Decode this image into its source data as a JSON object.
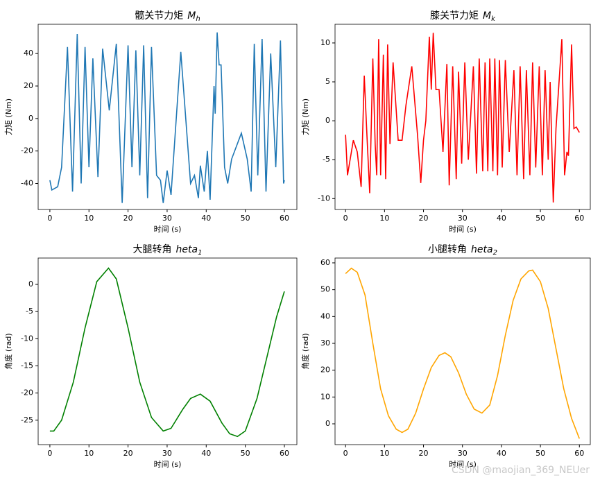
{
  "chart_data": [
    {
      "type": "line",
      "title": "髋关节力矩",
      "title_math": "M",
      "title_sub": "h",
      "xlabel": "时间 (s)",
      "ylabel": "力矩 (Nm)",
      "xlim": [
        -3,
        63.2
      ],
      "ylim": [
        -56,
        58
      ],
      "xticks": [
        0,
        10,
        20,
        30,
        40,
        50,
        60
      ],
      "yticks": [
        -40,
        -20,
        0,
        20,
        40
      ],
      "series": [
        {
          "color": "#1f77b4",
          "x": [
            0,
            0.5,
            2,
            3,
            4.5,
            5.8,
            7,
            8,
            9,
            10,
            11,
            12.3,
            13.5,
            15.2,
            17,
            18.5,
            20,
            21,
            22,
            23,
            24,
            25,
            26,
            27.3,
            28.3,
            29,
            30,
            31,
            33.5,
            36,
            37,
            38,
            38.5,
            39.5,
            40.3,
            41,
            41.5,
            42,
            42.3,
            42.8,
            43.3,
            43.8,
            44.7,
            45.5,
            46.5,
            49,
            50.5,
            51.5,
            52.3,
            53.2,
            54.3,
            55.3,
            56.5,
            57.8,
            59,
            59.8,
            60
          ],
          "values": [
            -38,
            -44,
            -42,
            -30,
            44,
            -45,
            52,
            -40,
            44,
            -30,
            37,
            -36,
            43,
            5,
            46,
            -52,
            45,
            -30,
            42,
            -35,
            45,
            -49,
            44,
            -35,
            -38,
            -52,
            -32,
            -47,
            41,
            -40,
            -35,
            -49,
            -29,
            -45,
            -20,
            -50,
            -15,
            20,
            3,
            53,
            33,
            33,
            -30,
            -40,
            -25,
            -9,
            -25,
            -45,
            46,
            -35,
            49,
            -45,
            40,
            -30,
            48,
            -40,
            -38
          ]
        }
      ]
    },
    {
      "type": "line",
      "title": "膝关节力矩",
      "title_math": "M",
      "title_sub": "k",
      "xlabel": "时间 (s)",
      "ylabel": "力矩 (Nm)",
      "xlim": [
        -2.7,
        62.8
      ],
      "ylim": [
        -11.4,
        12.4
      ],
      "xticks": [
        0,
        10,
        20,
        30,
        40,
        50,
        60
      ],
      "yticks": [
        -10,
        -5,
        0,
        5,
        10
      ],
      "series": [
        {
          "color": "#ff0000",
          "x": [
            0,
            0.5,
            1.5,
            2,
            3,
            4,
            4.8,
            5.5,
            6.2,
            7,
            7.6,
            8,
            8.5,
            9,
            9.7,
            10.3,
            10.8,
            11.4,
            12.2,
            13.5,
            14.5,
            15.5,
            17,
            18.5,
            19.3,
            20,
            20.6,
            21.5,
            22,
            22.5,
            23.2,
            24,
            25,
            26,
            26.6,
            27.5,
            28.4,
            29,
            29.8,
            30.6,
            31.5,
            32.8,
            33.6,
            34.3,
            35.2,
            35.8,
            36.5,
            37,
            37.8,
            38.3,
            39,
            39.5,
            40.2,
            41,
            42,
            43.2,
            44,
            44.8,
            45.7,
            46.4,
            47.3,
            48,
            48.8,
            49.7,
            50.5,
            51.2,
            52,
            52.5,
            53.3,
            54,
            55.5,
            56.2,
            56.8,
            57.2,
            58,
            58.6,
            59.2,
            60
          ],
          "values": [
            -1.8,
            -7,
            -4,
            -2.5,
            -4,
            -8.5,
            5.8,
            -2,
            -9.3,
            8,
            -3,
            -7,
            10.5,
            -7,
            8.5,
            -7.5,
            9.8,
            -3,
            7.5,
            -2.5,
            -2.5,
            2,
            7,
            -2,
            -8,
            -2.5,
            0,
            10.8,
            4,
            11.3,
            4,
            4,
            -4,
            7.3,
            -8.3,
            7,
            -7.5,
            6.3,
            -5.5,
            7.5,
            -5,
            7,
            -6.8,
            8,
            -6.5,
            7.5,
            -6.5,
            8,
            -6.5,
            8,
            -7,
            7.8,
            -6,
            7.8,
            -4,
            6.5,
            -7,
            7,
            -7.5,
            6.5,
            -7,
            7.5,
            -6,
            7,
            -7,
            6.5,
            -5,
            5,
            -10.5,
            -1,
            10.5,
            -7,
            -4,
            -4.5,
            9.8,
            -1,
            -0.8,
            -1.5
          ]
        }
      ]
    },
    {
      "type": "line",
      "title": "大腿转角",
      "title_math": "heta",
      "title_sub": "1",
      "xlabel": "时间 (s)",
      "ylabel": "角度 (rad)",
      "xlim": [
        -3,
        63.2
      ],
      "ylim": [
        -29.5,
        4.85
      ],
      "xticks": [
        0,
        10,
        20,
        30,
        40,
        50,
        60
      ],
      "yticks": [
        -25,
        -20,
        -15,
        -10,
        -5,
        0
      ],
      "series": [
        {
          "color": "#008000",
          "x": [
            0,
            1,
            3,
            6,
            9,
            12,
            15,
            17,
            20,
            23,
            26,
            29,
            31,
            34,
            36,
            38.5,
            41,
            44,
            46,
            48,
            50,
            53,
            56,
            58,
            60
          ],
          "values": [
            -27,
            -27,
            -25,
            -18,
            -8,
            0.5,
            3,
            1,
            -8,
            -18,
            -24.5,
            -27,
            -26.5,
            -23,
            -21,
            -20.2,
            -21.5,
            -25.5,
            -27.5,
            -28,
            -27,
            -21,
            -12,
            -6,
            -1.3
          ]
        }
      ]
    },
    {
      "type": "line",
      "title": "小腿转角",
      "title_math": "heta",
      "title_sub": "2",
      "xlabel": "时间 (s)",
      "ylabel": "角度 (rad)",
      "xlim": [
        -2.7,
        62.8
      ],
      "ylim": [
        -7.75,
        61.8
      ],
      "xticks": [
        0,
        10,
        20,
        30,
        40,
        50,
        60
      ],
      "yticks": [
        0,
        10,
        20,
        30,
        40,
        50,
        60
      ],
      "series": [
        {
          "color": "#ffa500",
          "x": [
            0,
            1.5,
            3,
            5,
            7,
            9,
            11,
            13,
            14.5,
            16,
            18,
            20,
            22,
            24,
            25.5,
            27,
            29,
            31,
            33,
            35,
            37,
            39,
            41,
            43,
            45,
            47,
            48,
            50,
            52,
            54,
            56,
            58,
            60
          ],
          "values": [
            56,
            58,
            56.5,
            48,
            30,
            13,
            3,
            -2,
            -3.2,
            -2,
            4,
            13,
            21,
            25.5,
            26.5,
            25,
            19,
            11,
            5.5,
            4,
            7,
            18,
            33,
            46,
            54,
            57,
            57.3,
            53,
            43,
            28,
            13,
            2,
            -5.5
          ]
        }
      ]
    }
  ],
  "watermark": "CSDN @maojian_369_NEUer"
}
